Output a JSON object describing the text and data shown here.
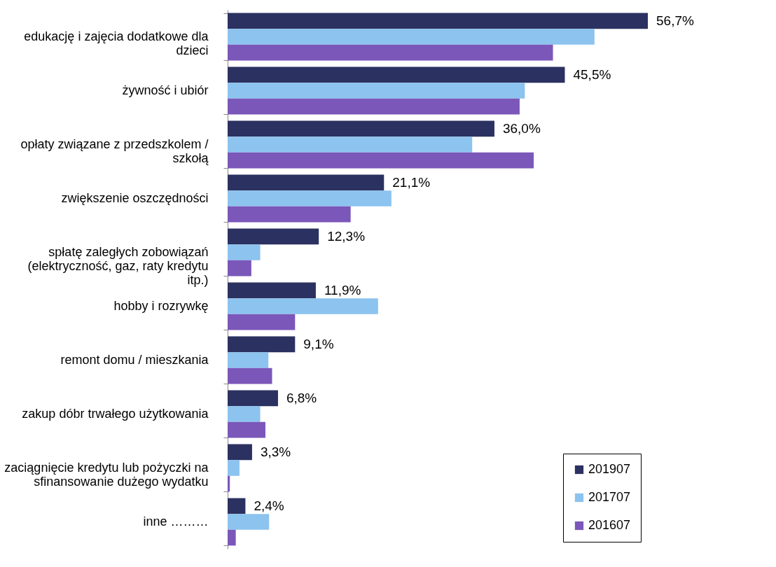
{
  "chart_data": {
    "type": "bar",
    "orientation": "horizontal",
    "categories": [
      "edukację i zajęcia dodatkowe dla dzieci",
      "żywność i ubiór",
      "opłaty związane z przedszkolem / szkołą",
      "zwiększenie oszczędności",
      "spłatę zaległych zobowiązań (elektryczność, gaz, raty kredytu itp.)",
      "hobby i rozrywkę",
      "remont domu / mieszkania",
      "zakup dóbr trwałego użytkowania",
      "zaciągnięcie kredytu lub pożyczki na sfinansowanie dużego wydatku",
      "inne ………"
    ],
    "series": [
      {
        "name": "201907",
        "color": "#2b3160",
        "values": [
          56.7,
          45.5,
          36.0,
          21.1,
          12.3,
          11.9,
          9.1,
          6.8,
          3.3,
          2.4
        ],
        "value_labels": [
          "56,7%",
          "45,5%",
          "36,0%",
          "21,1%",
          "12,3%",
          "11,9%",
          "9,1%",
          "6,8%",
          "3,3%",
          "2,4%"
        ]
      },
      {
        "name": "201707",
        "color": "#8cc3ef",
        "values": [
          49.5,
          40.1,
          33.0,
          22.1,
          4.4,
          20.3,
          5.5,
          4.4,
          1.6,
          5.6
        ]
      },
      {
        "name": "201607",
        "color": "#7b57b9",
        "values": [
          43.9,
          39.4,
          41.3,
          16.6,
          3.2,
          9.1,
          6.0,
          5.1,
          0.3,
          1.1
        ]
      }
    ],
    "legend": "bottom right",
    "grid": false
  }
}
